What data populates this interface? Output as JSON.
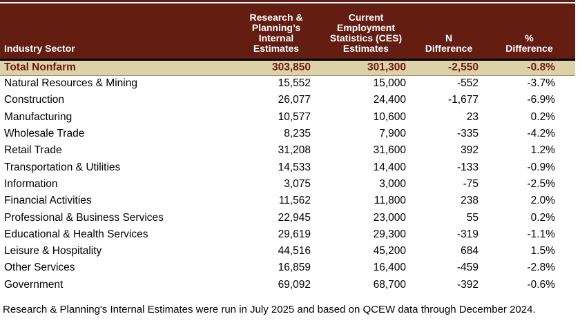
{
  "table": {
    "columns": [
      {
        "id": "sector",
        "label": "Industry Sector"
      },
      {
        "id": "internal",
        "label": "Research &\nPlanning’s\nInternal Estimates"
      },
      {
        "id": "ces",
        "label": "Current\nEmployment\nStatistics (CES)\nEstimates"
      },
      {
        "id": "n_diff",
        "label": "N\nDifference"
      },
      {
        "id": "pct_diff",
        "label": "%\nDifference"
      }
    ],
    "rows": [
      {
        "sector": "Total Nonfarm",
        "internal": "303,850",
        "ces": "301,300",
        "n_diff": "-2,550",
        "pct_diff": "-0.8%",
        "is_total": true
      },
      {
        "sector": "Natural Resources & Mining",
        "internal": "15,552",
        "ces": "15,000",
        "n_diff": "-552",
        "pct_diff": "-3.7%",
        "is_total": false
      },
      {
        "sector": "Construction",
        "internal": "26,077",
        "ces": "24,400",
        "n_diff": "-1,677",
        "pct_diff": "-6.9%",
        "is_total": false
      },
      {
        "sector": "Manufacturing",
        "internal": "10,577",
        "ces": "10,600",
        "n_diff": "23",
        "pct_diff": "0.2%",
        "is_total": false
      },
      {
        "sector": "Wholesale Trade",
        "internal": "8,235",
        "ces": "7,900",
        "n_diff": "-335",
        "pct_diff": "-4.2%",
        "is_total": false
      },
      {
        "sector": "Retail Trade",
        "internal": "31,208",
        "ces": "31,600",
        "n_diff": "392",
        "pct_diff": "1.2%",
        "is_total": false
      },
      {
        "sector": "Transportation & Utilities",
        "internal": "14,533",
        "ces": "14,400",
        "n_diff": "-133",
        "pct_diff": "-0.9%",
        "is_total": false
      },
      {
        "sector": "Information",
        "internal": "3,075",
        "ces": "3,000",
        "n_diff": "-75",
        "pct_diff": "-2.5%",
        "is_total": false
      },
      {
        "sector": "Financial Activities",
        "internal": "11,562",
        "ces": "11,800",
        "n_diff": "238",
        "pct_diff": "2.0%",
        "is_total": false
      },
      {
        "sector": "Professional & Business Services",
        "internal": "22,945",
        "ces": "23,000",
        "n_diff": "55",
        "pct_diff": "0.2%",
        "is_total": false
      },
      {
        "sector": "Educational & Health Services",
        "internal": "29,619",
        "ces": "29,300",
        "n_diff": "-319",
        "pct_diff": "-1.1%",
        "is_total": false
      },
      {
        "sector": "Leisure & Hospitality",
        "internal": "44,516",
        "ces": "45,200",
        "n_diff": "684",
        "pct_diff": "1.5%",
        "is_total": false
      },
      {
        "sector": "Other Services",
        "internal": "16,859",
        "ces": "16,400",
        "n_diff": "-459",
        "pct_diff": "-2.8%",
        "is_total": false
      },
      {
        "sector": "Government",
        "internal": "69,092",
        "ces": "68,700",
        "n_diff": "-392",
        "pct_diff": "-0.6%",
        "is_total": false
      }
    ]
  },
  "footnote": "Research & Planning's Internal Estimates were run in July 2025 and based on QCEW data through December 2024.",
  "colors": {
    "header_bg": "#631D11",
    "header_text": "#FFFFFF",
    "header_bottom_border": "#000000",
    "total_row_bg": "#DDD1A7",
    "total_row_text": "#6E1B10",
    "body_text": "#000000"
  },
  "chart_data": {
    "type": "table",
    "title": "",
    "categories": [
      "Total Nonfarm",
      "Natural Resources & Mining",
      "Construction",
      "Manufacturing",
      "Wholesale Trade",
      "Retail Trade",
      "Transportation & Utilities",
      "Information",
      "Financial Activities",
      "Professional & Business Services",
      "Educational & Health Services",
      "Leisure & Hospitality",
      "Other Services",
      "Government"
    ],
    "series": [
      {
        "name": "Research & Planning’s Internal Estimates",
        "values": [
          303850,
          15552,
          26077,
          10577,
          8235,
          31208,
          14533,
          3075,
          11562,
          22945,
          29619,
          44516,
          16859,
          69092
        ]
      },
      {
        "name": "Current Employment Statistics (CES) Estimates",
        "values": [
          301300,
          15000,
          24400,
          10600,
          7900,
          31600,
          14400,
          3000,
          11800,
          23000,
          29300,
          45200,
          16400,
          68700
        ]
      },
      {
        "name": "N Difference",
        "values": [
          -2550,
          -552,
          -1677,
          23,
          -335,
          392,
          -133,
          -75,
          238,
          55,
          -319,
          684,
          -459,
          -392
        ]
      },
      {
        "name": "% Difference",
        "values": [
          -0.8,
          -3.7,
          -6.9,
          0.2,
          -4.2,
          1.2,
          -0.9,
          -2.5,
          2.0,
          0.2,
          -1.1,
          1.5,
          -2.8,
          -0.6
        ]
      }
    ]
  }
}
